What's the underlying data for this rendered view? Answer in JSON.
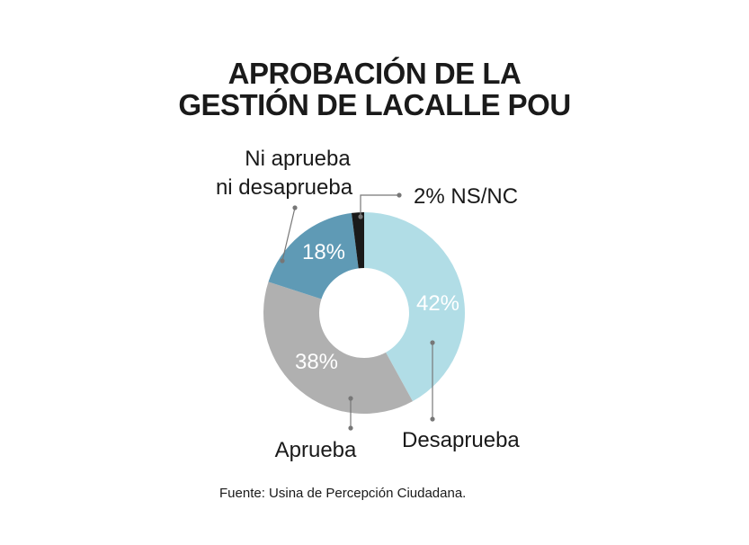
{
  "title_lines": [
    "APROBACIÓN DE LA",
    "GESTIÓN DE LACALLE POU"
  ],
  "source": "Fuente: Usina de Percepción Ciudadana.",
  "chart_data": {
    "type": "pie",
    "title": "APROBACIÓN DE LA GESTIÓN DE LACALLE POU",
    "donut": true,
    "categories": [
      "Desaprueba",
      "Aprueba",
      "Ni aprueba ni desaprueba",
      "NS/NC"
    ],
    "values": [
      42,
      38,
      18,
      2
    ],
    "value_labels": [
      "42%",
      "38%",
      "18%",
      "2%"
    ],
    "label_lines": [
      [
        "Desaprueba"
      ],
      [
        "Aprueba"
      ],
      [
        "Ni aprueba",
        "ni desaprueba"
      ],
      [
        "2% NS/NC"
      ]
    ],
    "colors": [
      "#b1dde6",
      "#b0b0b0",
      "#5f9ab5",
      "#1a1a1a"
    ],
    "unit": "%"
  }
}
